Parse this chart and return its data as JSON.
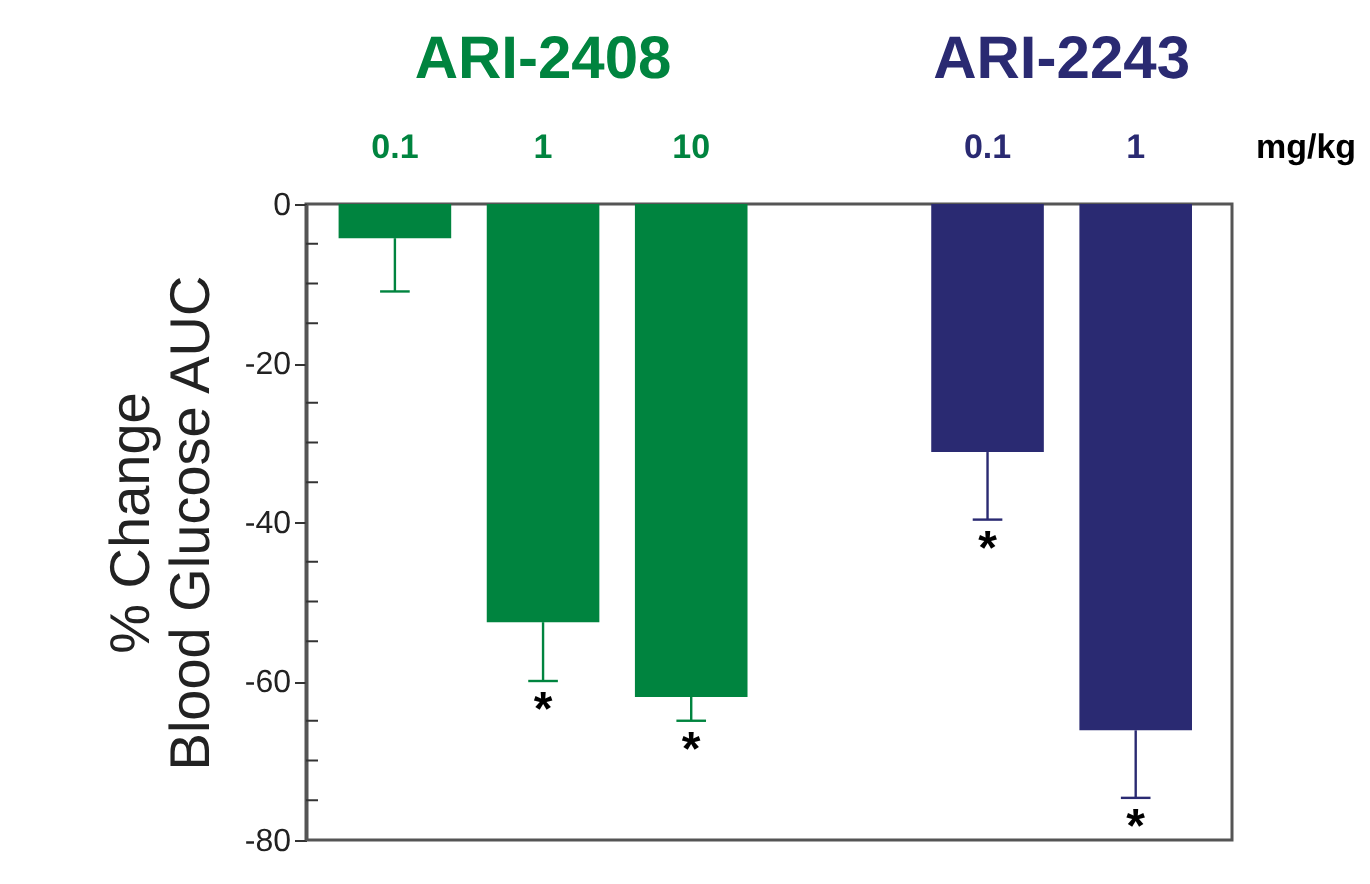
{
  "chart_data": {
    "type": "bar",
    "xlabel": "mg/kg",
    "ylabel": "% Change\nBlood Glucose AUC",
    "categories": [
      "0.1",
      "1",
      "10",
      null,
      "0.1",
      "1"
    ],
    "series": [
      {
        "name": "ARI-2408",
        "color": "#00843f",
        "values": [
          -4.3,
          -52.6,
          -62,
          null,
          null,
          null
        ],
        "errors": [
          [
            -11,
            -4.3
          ],
          [
            -60,
            -52.6
          ],
          [
            -65,
            -62
          ],
          null,
          null,
          null
        ],
        "value_labels": [
          null,
          "*",
          "*",
          null,
          null,
          null
        ]
      },
      {
        "name": "ARI-2243",
        "color": "#2a2a72",
        "values": [
          null,
          null,
          null,
          null,
          -31.2,
          -66.2
        ],
        "errors": [
          null,
          null,
          null,
          null,
          [
            -39.7,
            -31.2
          ],
          [
            -74.7,
            -66.2
          ]
        ],
        "value_labels": [
          null,
          null,
          null,
          null,
          "*",
          "*"
        ]
      }
    ],
    "ylim": [
      -80,
      0
    ],
    "yticks": [
      -80,
      {
        "value": -75,
        "label": null
      },
      {
        "value": -70,
        "label": null
      },
      {
        "value": -65,
        "label": null
      },
      -60,
      {
        "value": -55,
        "label": null
      },
      {
        "value": -50,
        "label": null
      },
      {
        "value": -45,
        "label": null
      },
      -40,
      {
        "value": -35,
        "label": null
      },
      {
        "value": -30,
        "label": null
      },
      {
        "value": -25,
        "label": null
      },
      -20,
      {
        "value": -15,
        "label": null
      },
      {
        "value": -10,
        "label": null
      },
      {
        "value": -5,
        "label": null
      },
      0
    ],
    "grid": false
  }
}
